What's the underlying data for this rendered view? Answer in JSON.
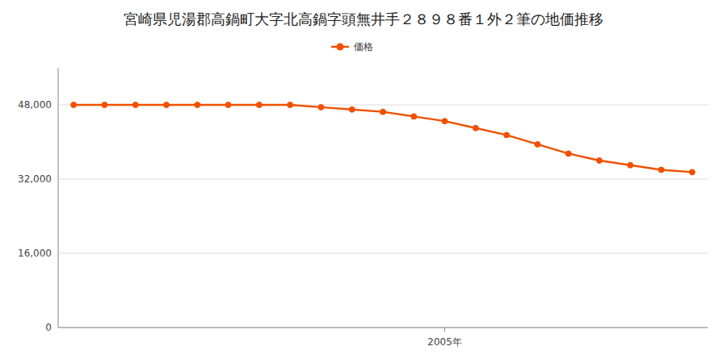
{
  "chart_data": {
    "type": "line",
    "title": "宮崎県児湯郡高鍋町大字北高鍋字頭無井手２８９８番１外２筆の地価推移",
    "x": [
      1993,
      1994,
      1995,
      1996,
      1997,
      1998,
      1999,
      2000,
      2001,
      2002,
      2003,
      2004,
      2005,
      2006,
      2007,
      2008,
      2009,
      2010,
      2011,
      2012,
      2013
    ],
    "series": [
      {
        "name": "価格",
        "color": "#f05000",
        "marker": "circle",
        "values": [
          48000,
          48000,
          48000,
          48000,
          48000,
          48000,
          48000,
          48000,
          47500,
          47000,
          46500,
          45500,
          44500,
          43000,
          41500,
          39500,
          37500,
          36000,
          35000,
          34000,
          33500
        ]
      }
    ],
    "xlim": [
      1992.5,
      2013.5
    ],
    "xticks": [
      {
        "value": 2005,
        "label": "2005年"
      }
    ],
    "ylim": [
      0,
      56000
    ],
    "yticks": [
      0,
      {
        "value": 16000,
        "label": "16,000"
      },
      {
        "value": 32000,
        "label": "32,000"
      },
      {
        "value": 48000,
        "label": "48,000"
      }
    ],
    "grid": true,
    "legend": "top"
  }
}
